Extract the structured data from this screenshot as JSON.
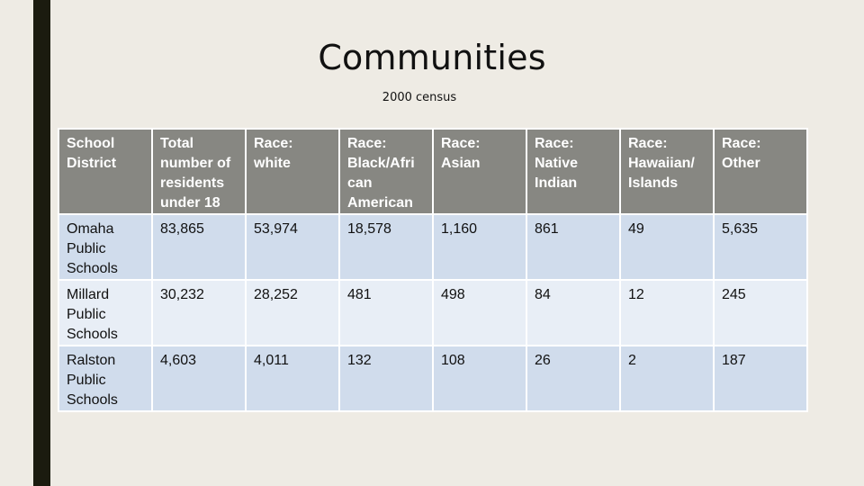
{
  "slide": {
    "title": "Communities",
    "subtitle": "2000 census"
  },
  "colors": {
    "background": "#EEEBE4",
    "left_bar": "#1B1B0F",
    "header_bg": "#878782",
    "header_text": "#FFFFFF",
    "row_band_dark": "#D0DCEC",
    "row_band_light": "#E8EEF6",
    "cell_border": "#FFFFFF"
  },
  "table": {
    "headers": [
      "School District",
      "Total number of residents under 18",
      "Race: white",
      "Race: Black/African American",
      "Race: Asian",
      "Race: Native Indian",
      "Race: Hawaiian/ Islands",
      "Race: Other"
    ],
    "rows": [
      {
        "district": "Omaha Public Schools",
        "total_under_18": "83,865",
        "white": "53,974",
        "black_african_american": "18,578",
        "asian": "1,160",
        "native_indian": "861",
        "hawaiian_islands": "49",
        "other": "5,635"
      },
      {
        "district": "Millard Public Schools",
        "total_under_18": "30,232",
        "white": "28,252",
        "black_african_american": "481",
        "asian": "498",
        "native_indian": "84",
        "hawaiian_islands": "12",
        "other": "245"
      },
      {
        "district": "Ralston Public Schools",
        "total_under_18": "4,603",
        "white": "4,011",
        "black_african_american": "132",
        "asian": "108",
        "native_indian": "26",
        "hawaiian_islands": "2",
        "other": "187"
      }
    ]
  }
}
